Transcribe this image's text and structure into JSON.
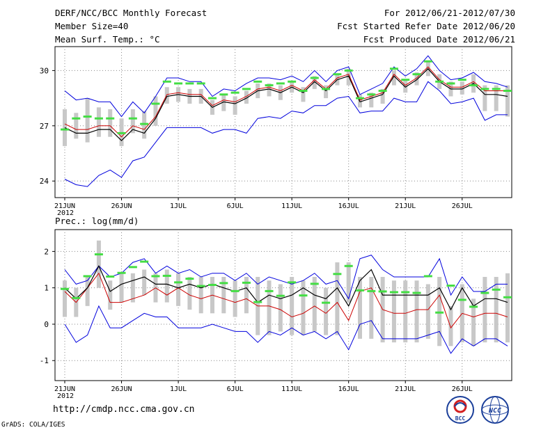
{
  "header": {
    "title": "DERF/NCC/BCC Monthly Forecast",
    "member_size": "Member Size=40",
    "variable": "Mean Surf. Temp.: °C",
    "period": "For 2012/06/21-2012/07/30",
    "started": "Fcst Started Refer Date 2012/06/20",
    "produced": "Fcst Produced Date 2012/06/21"
  },
  "footer": {
    "url": "http://cmdp.ncc.cma.gov.cn",
    "grads": "GrADS: COLA/IGES",
    "logo_left": "BCC",
    "logo_right": "NCC"
  },
  "colors": {
    "max_line": "#0000dd",
    "min_line": "#0000dd",
    "mean_line": "#cc0000",
    "median_line": "#000000",
    "box": "#c8c8c8",
    "highlight": "#44dd44"
  },
  "chart_data": [
    {
      "type": "line",
      "title": "Mean Surf. Temp.: °C",
      "xlabel": "",
      "ylabel": "",
      "x_tick_labels": [
        "21JUN",
        "26JUN",
        "1JUL",
        "6JUL",
        "11JUL",
        "16JUL",
        "21JUL",
        "26JUL"
      ],
      "x_tick_days": [
        1,
        6,
        11,
        16,
        21,
        26,
        31,
        36
      ],
      "year_label": "2012",
      "y_ticks": [
        24,
        27,
        30
      ],
      "ylim": [
        23.1,
        31.3
      ],
      "days": [
        1,
        2,
        3,
        4,
        5,
        6,
        7,
        8,
        9,
        10,
        11,
        12,
        13,
        14,
        15,
        16,
        17,
        18,
        19,
        20,
        21,
        22,
        23,
        24,
        25,
        26,
        27,
        28,
        29,
        30,
        31,
        32,
        33,
        34,
        35,
        36,
        37,
        38,
        39,
        40
      ],
      "series": [
        {
          "name": "max",
          "values": [
            28.9,
            28.4,
            28.5,
            28.3,
            28.3,
            27.5,
            28.3,
            27.7,
            28.6,
            29.6,
            29.6,
            29.4,
            29.4,
            28.6,
            29.0,
            28.9,
            29.3,
            29.6,
            29.6,
            29.5,
            29.7,
            29.4,
            30.0,
            29.4,
            30.0,
            30.2,
            28.7,
            29.0,
            29.3,
            30.2,
            29.7,
            30.1,
            30.8,
            30.0,
            29.5,
            29.6,
            29.9,
            29.4,
            29.3,
            29.1
          ]
        },
        {
          "name": "mean",
          "values": [
            27.1,
            26.8,
            26.8,
            27.0,
            27.0,
            26.4,
            27.0,
            26.8,
            27.5,
            28.7,
            28.8,
            28.7,
            28.7,
            28.1,
            28.4,
            28.3,
            28.6,
            29.0,
            29.1,
            28.9,
            29.2,
            28.9,
            29.5,
            29.0,
            29.6,
            29.8,
            28.4,
            28.6,
            28.8,
            29.8,
            29.2,
            29.6,
            30.2,
            29.5,
            29.1,
            29.1,
            29.4,
            28.9,
            28.9,
            28.9
          ]
        },
        {
          "name": "median",
          "values": [
            26.9,
            26.6,
            26.6,
            26.8,
            26.8,
            26.2,
            26.8,
            26.6,
            27.4,
            28.6,
            28.7,
            28.6,
            28.6,
            28.0,
            28.3,
            28.2,
            28.5,
            28.9,
            29.0,
            28.8,
            29.1,
            28.8,
            29.4,
            28.9,
            29.5,
            29.7,
            28.3,
            28.5,
            28.7,
            29.7,
            29.1,
            29.5,
            30.1,
            29.4,
            29.0,
            29.0,
            29.3,
            28.7,
            28.7,
            28.6
          ]
        },
        {
          "name": "min",
          "values": [
            24.1,
            23.8,
            23.7,
            24.3,
            24.6,
            24.2,
            25.1,
            25.3,
            26.1,
            26.9,
            26.9,
            26.9,
            26.9,
            26.6,
            26.8,
            26.8,
            26.6,
            27.4,
            27.5,
            27.4,
            27.8,
            27.7,
            28.1,
            28.1,
            28.5,
            28.6,
            27.7,
            27.8,
            27.8,
            28.5,
            28.3,
            28.3,
            29.4,
            28.9,
            28.2,
            28.3,
            28.5,
            27.3,
            27.6,
            27.6
          ]
        },
        {
          "name": "highlight",
          "values": [
            26.8,
            27.4,
            27.5,
            27.4,
            27.4,
            26.6,
            27.4,
            27.1,
            28.2,
            29.4,
            29.3,
            29.3,
            29.3,
            28.5,
            28.7,
            28.8,
            29.0,
            29.4,
            29.2,
            29.3,
            29.4,
            28.9,
            29.6,
            29.0,
            29.8,
            30.0,
            28.5,
            28.7,
            28.9,
            30.1,
            29.5,
            29.8,
            30.5,
            29.4,
            29.3,
            29.5,
            29.2,
            29.0,
            29.0,
            28.9
          ]
        },
        {
          "name": "box_high",
          "values": [
            27.9,
            27.7,
            28.5,
            28.0,
            27.9,
            27.4,
            27.9,
            27.8,
            28.6,
            29.1,
            29.1,
            29.0,
            29.0,
            28.4,
            28.7,
            28.6,
            28.9,
            29.3,
            29.3,
            29.2,
            29.4,
            29.1,
            29.7,
            29.2,
            29.8,
            30.1,
            28.7,
            28.8,
            29.0,
            30.0,
            29.5,
            29.9,
            30.5,
            29.8,
            29.4,
            29.4,
            29.8,
            29.2,
            29.2,
            29.2
          ]
        },
        {
          "name": "box_low",
          "values": [
            25.9,
            26.3,
            26.1,
            26.4,
            26.4,
            25.9,
            26.6,
            26.3,
            27.0,
            28.2,
            28.3,
            28.2,
            28.2,
            27.6,
            27.8,
            27.6,
            28.2,
            28.5,
            28.6,
            28.4,
            28.8,
            28.3,
            29.0,
            28.5,
            29.2,
            29.2,
            28.0,
            28.0,
            28.2,
            29.2,
            28.8,
            29.2,
            29.7,
            29.0,
            28.6,
            28.7,
            28.8,
            27.8,
            27.8,
            27.5
          ]
        }
      ]
    },
    {
      "type": "line",
      "title": "Prec.: log(mm/d)",
      "xlabel": "",
      "ylabel": "",
      "x_tick_labels": [
        "21JUN",
        "26JUN",
        "1JUL",
        "6JUL",
        "11JUL",
        "16JUL",
        "21JUL",
        "26JUL"
      ],
      "x_tick_days": [
        1,
        6,
        11,
        16,
        21,
        26,
        31,
        36
      ],
      "year_label": "2012",
      "y_ticks": [
        -1,
        0,
        1,
        2
      ],
      "ylim": [
        -1.55,
        2.6
      ],
      "days": [
        1,
        2,
        3,
        4,
        5,
        6,
        7,
        8,
        9,
        10,
        11,
        12,
        13,
        14,
        15,
        16,
        17,
        18,
        19,
        20,
        21,
        22,
        23,
        24,
        25,
        26,
        27,
        28,
        29,
        30,
        31,
        32,
        33,
        34,
        35,
        36,
        37,
        38,
        39,
        40
      ],
      "series": [
        {
          "name": "max",
          "values": [
            1.5,
            1.1,
            1.2,
            1.6,
            1.3,
            1.4,
            1.7,
            1.8,
            1.4,
            1.6,
            1.4,
            1.5,
            1.3,
            1.4,
            1.4,
            1.2,
            1.4,
            1.1,
            1.3,
            1.2,
            1.1,
            1.2,
            1.4,
            1.1,
            1.2,
            0.7,
            1.8,
            1.9,
            1.5,
            1.3,
            1.3,
            1.3,
            1.3,
            1.8,
            0.8,
            1.3,
            0.9,
            0.9,
            1.1,
            1.1
          ]
        },
        {
          "name": "mean",
          "values": [
            0.9,
            0.6,
            1.0,
            1.4,
            0.6,
            0.6,
            0.7,
            0.8,
            1.0,
            0.8,
            1.0,
            0.8,
            0.7,
            0.8,
            0.7,
            0.6,
            0.7,
            0.5,
            0.5,
            0.4,
            0.2,
            0.3,
            0.5,
            0.3,
            0.6,
            0.1,
            0.9,
            1.0,
            0.4,
            0.3,
            0.3,
            0.4,
            0.4,
            0.8,
            -0.1,
            0.3,
            0.2,
            0.3,
            0.3,
            0.2
          ]
        },
        {
          "name": "median",
          "values": [
            1.0,
            0.7,
            1.0,
            1.6,
            0.9,
            1.1,
            1.2,
            1.3,
            1.1,
            1.1,
            1.0,
            1.1,
            1.0,
            1.1,
            1.0,
            0.9,
            1.0,
            0.6,
            0.8,
            0.7,
            0.8,
            1.0,
            0.8,
            0.7,
            1.0,
            0.5,
            1.2,
            1.5,
            0.8,
            0.8,
            0.8,
            0.8,
            0.8,
            1.0,
            0.4,
            1.0,
            0.5,
            0.7,
            0.7,
            0.6
          ]
        },
        {
          "name": "min",
          "values": [
            0.0,
            -0.5,
            -0.3,
            0.5,
            -0.1,
            -0.1,
            0.1,
            0.3,
            0.2,
            0.2,
            -0.1,
            -0.1,
            -0.1,
            0.0,
            -0.1,
            -0.2,
            -0.2,
            -0.5,
            -0.2,
            -0.3,
            -0.1,
            -0.3,
            -0.2,
            -0.4,
            -0.2,
            -0.7,
            0.0,
            0.1,
            -0.4,
            -0.4,
            -0.4,
            -0.4,
            -0.3,
            -0.2,
            -0.8,
            -0.4,
            -0.6,
            -0.4,
            -0.4,
            -0.6
          ]
        },
        {
          "name": "highlight",
          "values": [
            0.97,
            0.72,
            1.32,
            1.92,
            1.31,
            1.41,
            1.57,
            1.72,
            1.32,
            1.33,
            1.15,
            1.25,
            1.05,
            1.08,
            1.13,
            0.91,
            1.14,
            0.61,
            0.91,
            0.78,
            1.15,
            0.79,
            1.11,
            0.59,
            1.38,
            1.6,
            0.93,
            0.91,
            0.9,
            0.88,
            0.88,
            0.86,
            1.32,
            0.32,
            1.06,
            0.67,
            0.48,
            0.86,
            0.95,
            0.74
          ]
        },
        {
          "name": "box_high",
          "values": [
            1.2,
            1.0,
            1.3,
            2.3,
            1.2,
            1.4,
            1.4,
            1.5,
            1.4,
            1.5,
            1.4,
            1.3,
            1.3,
            1.3,
            1.3,
            1.2,
            1.3,
            1.3,
            1.2,
            1.1,
            1.3,
            1.2,
            1.3,
            1.0,
            1.7,
            1.7,
            1.3,
            1.3,
            1.3,
            1.2,
            1.2,
            1.2,
            1.1,
            1.3,
            0.5,
            1.1,
            0.7,
            1.3,
            1.3,
            1.4
          ]
        },
        {
          "name": "box_low",
          "values": [
            0.2,
            0.2,
            0.5,
            1.0,
            0.4,
            0.6,
            0.6,
            0.8,
            0.6,
            0.6,
            0.5,
            0.4,
            0.3,
            0.3,
            0.3,
            0.2,
            0.3,
            -0.3,
            -0.3,
            -0.2,
            -0.3,
            -0.3,
            -0.2,
            -0.3,
            -0.3,
            0.6,
            -0.4,
            -0.4,
            -0.5,
            -0.5,
            -0.5,
            -0.5,
            -0.4,
            -0.6,
            -0.6,
            -0.5,
            -0.6,
            -0.5,
            -0.5,
            -0.5
          ]
        }
      ]
    }
  ]
}
